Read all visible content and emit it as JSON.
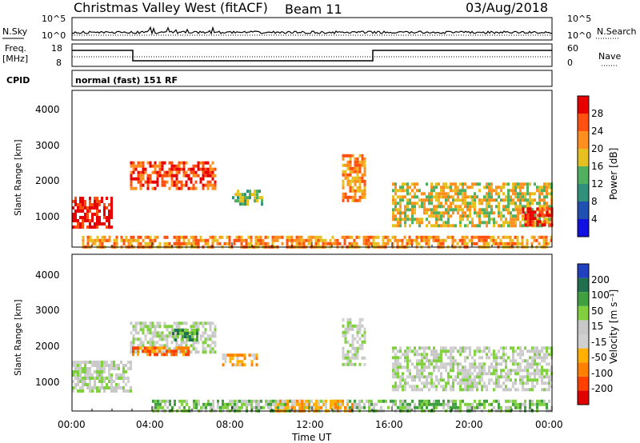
{
  "header": {
    "station": "Christmas Valley West (fitACF)",
    "beam": "Beam 11",
    "date": "03/Aug/2018"
  },
  "top_panels": {
    "nsky_label": "N.Sky",
    "nsearch_label": "N.Search",
    "noise_ticks_left": [
      "10^5",
      "10^0"
    ],
    "noise_ticks_right": [
      "10^5",
      "10^0"
    ],
    "freq_label_line1": "Freq.",
    "freq_label_line2": "[MHz]",
    "freq_ticks_left": [
      "18",
      "8"
    ],
    "nave_label": "Nave",
    "nave_ticks_right": [
      "60",
      "0"
    ],
    "cpid_label": "CPID",
    "cpid_text": "normal (fast) 151 RF"
  },
  "colors": {
    "power_scale": [
      "#1010e0",
      "#2050b0",
      "#30907a",
      "#50b060",
      "#e6c020",
      "#ff9020",
      "#ff5010",
      "#e80000"
    ],
    "velocity_scale": [
      "#2040c0",
      "#207050",
      "#40a040",
      "#80d040",
      "#c8c8c8",
      "#d0d0d0",
      "#ffb000",
      "#ff8000",
      "#ff4000",
      "#e00000"
    ]
  },
  "chart_data": [
    {
      "type": "heatmap",
      "name": "power",
      "ylabel": "Slant Range [km]",
      "yticks": [
        "1000",
        "2000",
        "3000",
        "4000"
      ],
      "ylim": [
        180,
        4600
      ],
      "xlim": [
        0,
        24
      ],
      "colorbar_label": "Power [dB]",
      "colorbar_ticks": [
        "4",
        "8",
        "12",
        "16",
        "20",
        "24",
        "28"
      ],
      "regions": [
        {
          "t": [
            0.0,
            2.0
          ],
          "r": [
            700,
            1600
          ],
          "level": 7
        },
        {
          "t": [
            2.9,
            7.2
          ],
          "r": [
            1800,
            2600
          ],
          "level": 6
        },
        {
          "t": [
            8.0,
            9.5
          ],
          "r": [
            1400,
            1800
          ],
          "level": 3
        },
        {
          "t": [
            13.5,
            14.7
          ],
          "r": [
            1500,
            2800
          ],
          "level": 5
        },
        {
          "t": [
            16.0,
            24.0
          ],
          "r": [
            800,
            2000
          ],
          "level": 4
        },
        {
          "t": [
            22.5,
            24.0
          ],
          "r": [
            800,
            1300
          ],
          "level": 7
        },
        {
          "t": [
            0.5,
            24.0
          ],
          "r": [
            180,
            500
          ],
          "level": 5
        }
      ]
    },
    {
      "type": "heatmap",
      "name": "velocity",
      "ylabel": "Slant Range [km]",
      "yticks": [
        "1000",
        "2000",
        "3000",
        "4000"
      ],
      "ylim": [
        180,
        4600
      ],
      "xlim": [
        0,
        24
      ],
      "xlabel": "Time UT",
      "xticks": [
        "00:00",
        "04:00",
        "08:00",
        "12:00",
        "16:00",
        "20:00",
        "00:00"
      ],
      "colorbar_label": "Velocity [m s⁻¹]",
      "colorbar_ticks": [
        "200",
        "100",
        "50",
        "15",
        "-15",
        "-50",
        "-100",
        "-200"
      ],
      "regions": [
        {
          "t": [
            0.0,
            3.0
          ],
          "r": [
            700,
            1600
          ],
          "level": 4
        },
        {
          "t": [
            2.9,
            7.2
          ],
          "r": [
            1800,
            2700
          ],
          "level": 4
        },
        {
          "t": [
            5.0,
            6.2
          ],
          "r": [
            2200,
            2500
          ],
          "level": 2
        },
        {
          "t": [
            3.0,
            6.0
          ],
          "r": [
            1800,
            2000
          ],
          "level": 7
        },
        {
          "t": [
            7.5,
            9.3
          ],
          "r": [
            1500,
            1800
          ],
          "level": 6
        },
        {
          "t": [
            13.5,
            14.7
          ],
          "r": [
            1500,
            2800
          ],
          "level": 4
        },
        {
          "t": [
            16.0,
            24.0
          ],
          "r": [
            800,
            2000
          ],
          "level": 4
        },
        {
          "t": [
            4.0,
            24.0
          ],
          "r": [
            180,
            500
          ],
          "level": 3
        },
        {
          "t": [
            10.0,
            14.0
          ],
          "r": [
            180,
            500
          ],
          "level": 6
        }
      ]
    }
  ]
}
